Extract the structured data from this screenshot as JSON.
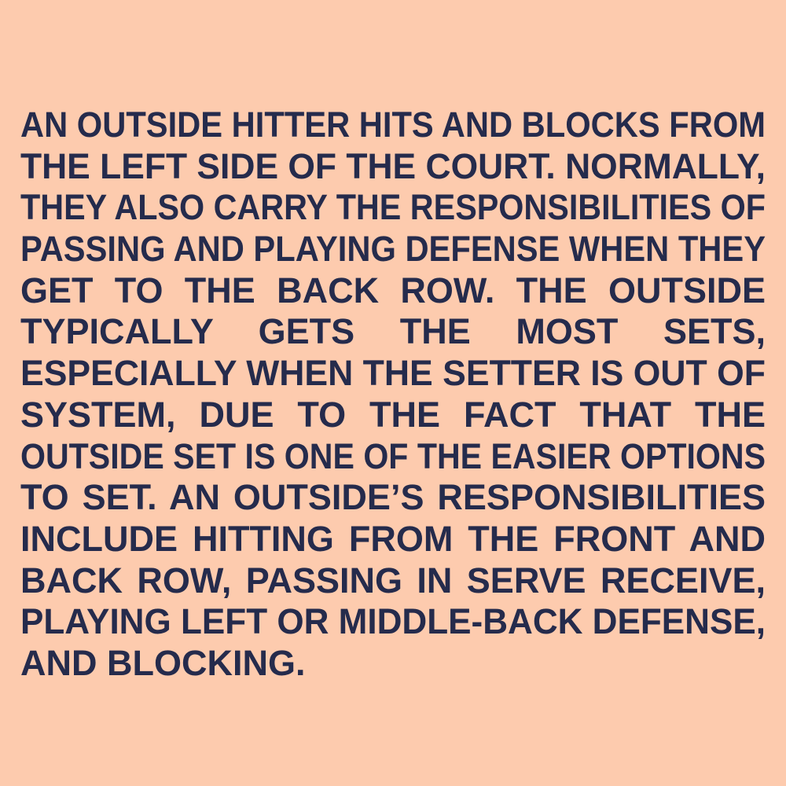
{
  "paragraph": {
    "lines": [
      "AN OUTSIDE HITTER HITS AND BLOCKS FROM",
      "THE LEFT SIDE OF THE COURT. NORMALLY,",
      "THEY ALSO CARRY THE RESPONSIBILITIES OF",
      "PASSING AND PLAYING DEFENSE WHEN THEY",
      "GET TO THE BACK ROW. THE OUTSIDE",
      "TYPICALLY GETS THE MOST SETS,",
      "ESPECIALLY WHEN THE SETTER IS OUT OF",
      "SYSTEM, DUE TO THE FACT THAT THE",
      "OUTSIDE SET IS ONE OF THE EASIER OPTIONS",
      "TO SET. AN OUTSIDE’S RESPONSIBILITIES",
      "INCLUDE HITTING FROM THE FRONT AND",
      "BACK ROW, PASSING IN SERVE RECEIVE,",
      "PLAYING LEFT OR MIDDLE-BACK DEFENSE,",
      "AND BLOCKING."
    ]
  },
  "colors": {
    "background": "#fdcbae",
    "text": "#252b4c"
  }
}
